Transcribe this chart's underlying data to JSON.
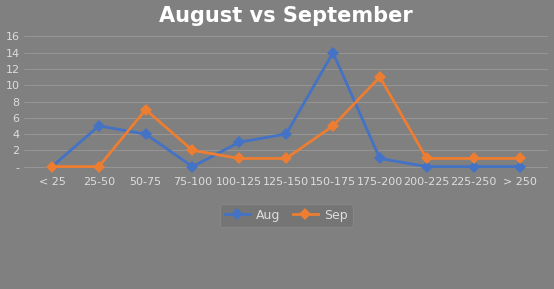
{
  "title": "August vs September",
  "categories": [
    "< 25",
    "25-50",
    "50-75",
    "75-100",
    "100-125",
    "125-150",
    "150-175",
    "175-200",
    "200-225",
    "225-250",
    "> 250"
  ],
  "aug": [
    0,
    5,
    4,
    0,
    3,
    4,
    14,
    1,
    0,
    0,
    0
  ],
  "sep": [
    0,
    0,
    7,
    2,
    1,
    1,
    5,
    11,
    1,
    1,
    1
  ],
  "aug_color": "#4472C4",
  "sep_color": "#ED7D31",
  "bg_color": "#808080",
  "title_color": "#FFFFFF",
  "tick_color": "#DDDDDD",
  "grid_color": "#9A9A9A",
  "legend_face_color": "#737373",
  "legend_edge_color": "#888888",
  "yticks": [
    0,
    2,
    4,
    6,
    8,
    10,
    12,
    14,
    16
  ],
  "ytick_labels": [
    "-",
    "2",
    "4",
    "6",
    "8",
    "10",
    "12",
    "14",
    "16"
  ],
  "legend_labels": [
    "Aug",
    "Sep"
  ],
  "marker_size": 6,
  "line_width": 2.0,
  "title_fontsize": 15,
  "tick_fontsize": 8,
  "legend_fontsize": 9
}
